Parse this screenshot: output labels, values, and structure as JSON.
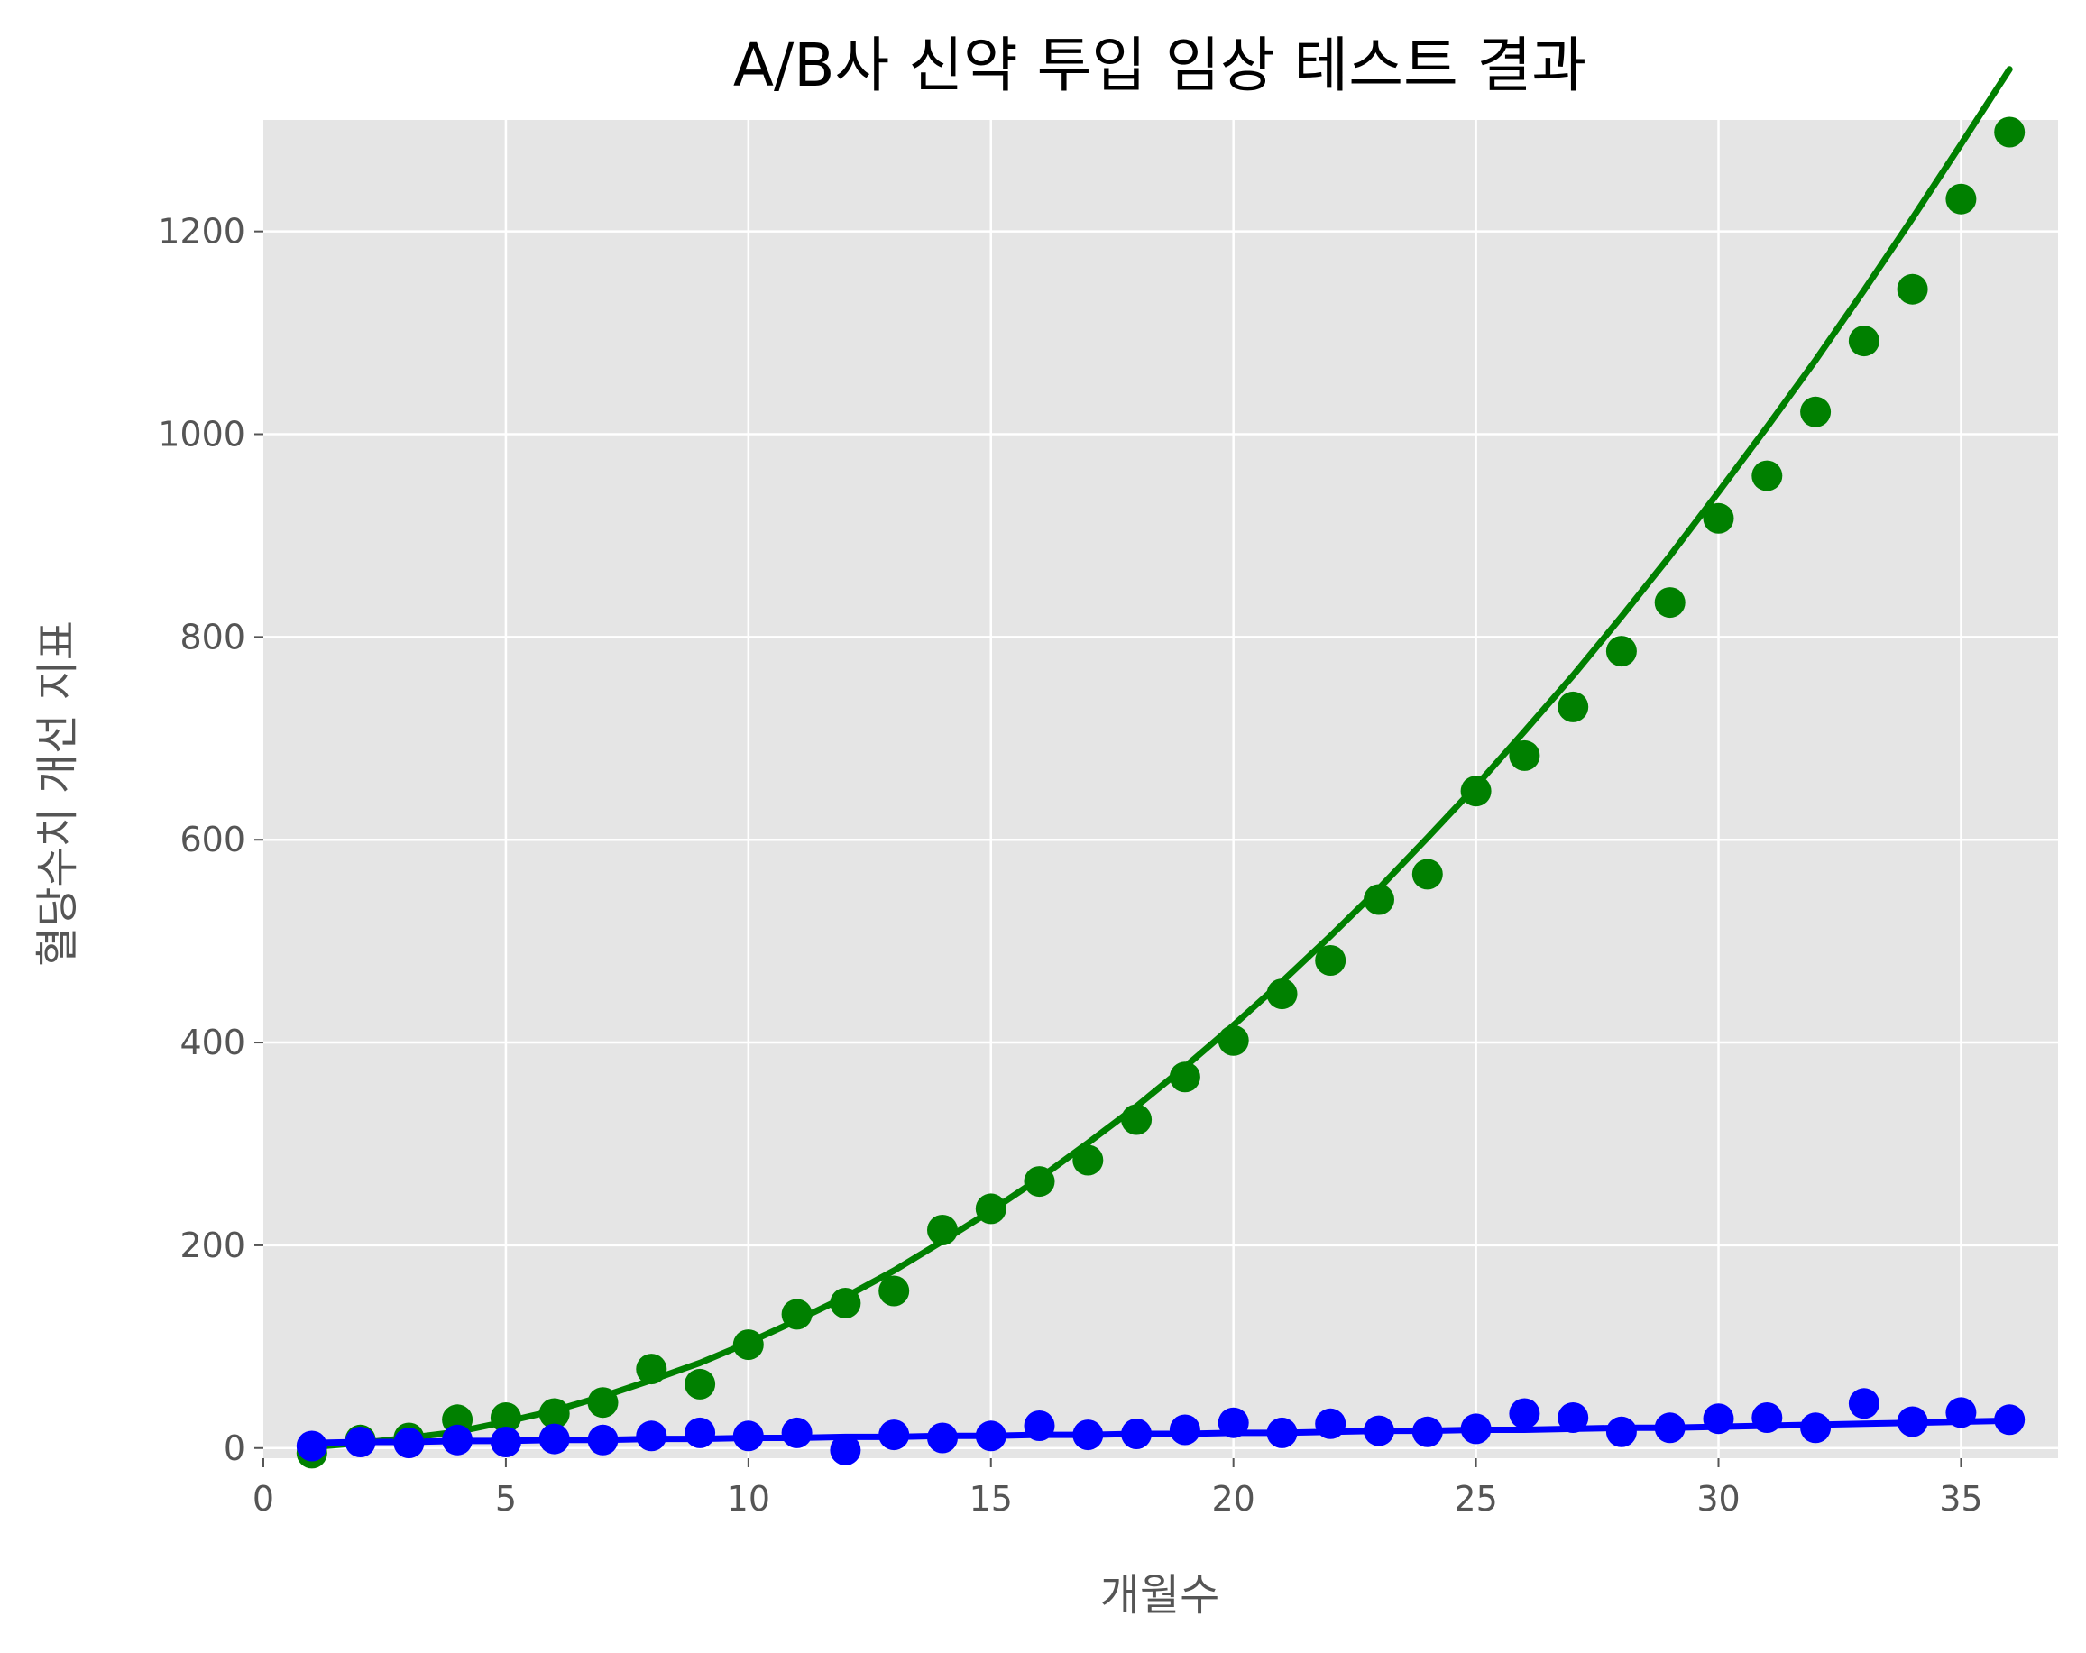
{
  "chart_data": {
    "type": "scatter",
    "title": "A/B사 신약 투입 임상 테스트 결과",
    "xlabel": "개월수",
    "ylabel": "혈당수치 개선 지표",
    "xlim": [
      0,
      37
    ],
    "ylim": [
      -10,
      1310
    ],
    "xticks": [
      0,
      5,
      10,
      15,
      20,
      25,
      30,
      35
    ],
    "yticks": [
      0,
      200,
      400,
      600,
      800,
      1000,
      1200
    ],
    "grid": true,
    "legend": "none",
    "colors": {
      "background": "#e5e5e5",
      "grid": "#ffffff",
      "series_green": "#008000",
      "series_blue": "#0000ff"
    },
    "x": [
      1,
      2,
      3,
      4,
      5,
      6,
      7,
      8,
      9,
      10,
      11,
      12,
      13,
      14,
      15,
      16,
      17,
      18,
      19,
      20,
      21,
      22,
      23,
      24,
      25,
      26,
      27,
      28,
      29,
      30,
      31,
      32,
      33,
      34,
      35,
      36
    ],
    "series": [
      {
        "color": "#008000",
        "values": [
          -5,
          8,
          10,
          28,
          30,
          34,
          45,
          78,
          63,
          102,
          132,
          143,
          155,
          215,
          236,
          263,
          284,
          324,
          366,
          402,
          448,
          481,
          541,
          566,
          648,
          683,
          731,
          786,
          834,
          917,
          959,
          1022,
          1092,
          1143,
          1232,
          1298
        ],
        "fit": [
          1,
          5,
          10,
          16,
          26,
          37,
          51,
          67,
          84,
          104,
          126,
          149,
          175,
          204,
          234,
          266,
          301,
          337,
          376,
          417,
          460,
          505,
          552,
          602,
          653,
          707,
          762,
          820,
          880,
          943,
          1007,
          1073,
          1142,
          1213,
          1286,
          1360
        ]
      },
      {
        "color": "#0000ff",
        "values": [
          2,
          6,
          5,
          8,
          6,
          9,
          8,
          12,
          15,
          12,
          15,
          -2,
          13,
          10,
          12,
          22,
          13,
          14,
          18,
          25,
          15,
          24,
          17,
          16,
          19,
          34,
          30,
          16,
          20,
          29,
          30,
          20,
          44,
          26,
          35,
          28
        ],
        "fit": [
          5,
          6,
          6,
          7,
          7,
          8,
          8,
          9,
          9,
          10,
          10,
          11,
          11,
          12,
          12,
          13,
          13,
          14,
          14,
          15,
          15,
          16,
          17,
          17,
          18,
          18,
          19,
          20,
          20,
          21,
          22,
          23,
          24,
          25,
          26,
          27
        ]
      }
    ]
  }
}
